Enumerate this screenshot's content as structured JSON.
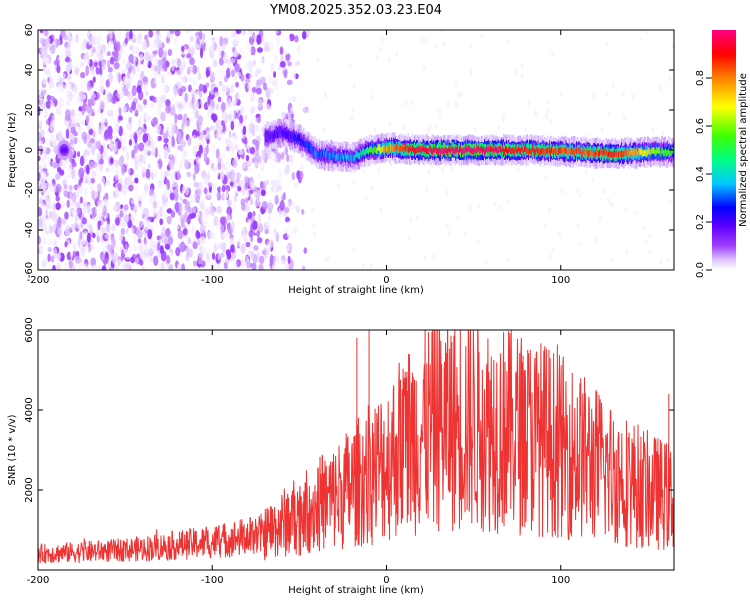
{
  "title": "YM08.2025.352.03.23.E04",
  "chart_data": [
    {
      "id": "spectrogram",
      "type": "heatmap",
      "xlabel": "Height of straight line (km)",
      "ylabel": "Frequency (Hz)",
      "xlim": [
        -200,
        165
      ],
      "ylim": [
        -60,
        60
      ],
      "xticks": [
        -200,
        -100,
        0,
        100
      ],
      "xtick_labels": [
        "-200",
        "-100",
        "0",
        "100"
      ],
      "yticks": [
        -60,
        -40,
        -20,
        0,
        20,
        40,
        60
      ],
      "ytick_labels": [
        "-60",
        "-40",
        "-20",
        "0",
        "20",
        "40",
        "60"
      ],
      "colorbar": {
        "label": "Normalized spectral amplitude",
        "ticks": [
          0.0,
          0.2,
          0.4,
          0.6,
          0.8
        ],
        "tick_labels": [
          "0.0",
          "0.2",
          "0.4",
          "0.6",
          "0.8"
        ],
        "range": [
          0,
          1
        ],
        "colormap": [
          "#ffffff",
          "#e0c8ff",
          "#a040ff",
          "#6000ff",
          "#0000ff",
          "#00c8ff",
          "#00ff80",
          "#40ff00",
          "#ffff00",
          "#ff8000",
          "#ff0000",
          "#ff0080"
        ]
      },
      "noise_region": {
        "x_range": [
          -200,
          -45
        ],
        "y_range": [
          -60,
          60
        ],
        "amplitude_range": [
          0.0,
          0.2
        ]
      },
      "ridge": [
        {
          "x": -185,
          "y": 0,
          "amp": 0.22
        },
        {
          "x": -70,
          "y": 6,
          "amp": 0.25
        },
        {
          "x": -60,
          "y": 9,
          "amp": 0.3
        },
        {
          "x": -50,
          "y": 5,
          "amp": 0.35
        },
        {
          "x": -40,
          "y": -2,
          "amp": 0.4
        },
        {
          "x": -20,
          "y": -4,
          "amp": 0.45
        },
        {
          "x": -10,
          "y": 0,
          "amp": 0.6
        },
        {
          "x": 0,
          "y": 1,
          "amp": 0.8
        },
        {
          "x": 20,
          "y": 0,
          "amp": 0.95
        },
        {
          "x": 50,
          "y": 0,
          "amp": 1.0
        },
        {
          "x": 80,
          "y": 0,
          "amp": 0.9
        },
        {
          "x": 110,
          "y": -1,
          "amp": 0.85
        },
        {
          "x": 130,
          "y": -2,
          "amp": 0.9
        },
        {
          "x": 150,
          "y": -1,
          "amp": 0.7
        },
        {
          "x": 165,
          "y": -1,
          "amp": 0.6
        }
      ]
    },
    {
      "id": "snr",
      "type": "line",
      "xlabel": "Height of straight line (km)",
      "ylabel": "SNR (10 * v/v)",
      "xlim": [
        -200,
        165
      ],
      "ylim": [
        0,
        6000
      ],
      "xticks": [
        -200,
        -100,
        0,
        100
      ],
      "xtick_labels": [
        "-200",
        "-100",
        "0",
        "100"
      ],
      "yticks": [
        2000,
        4000,
        6000
      ],
      "ytick_labels": [
        "2000",
        "4000",
        "6000"
      ],
      "color": "#ee3333",
      "envelope": {
        "x": [
          -200,
          -150,
          -100,
          -70,
          -50,
          -30,
          -20,
          -10,
          0,
          10,
          30,
          50,
          70,
          90,
          110,
          130,
          150,
          165
        ],
        "y": [
          400,
          500,
          700,
          900,
          1400,
          1800,
          2100,
          2400,
          2700,
          3200,
          3700,
          3700,
          3500,
          3300,
          2900,
          2400,
          2000,
          1800
        ]
      },
      "spikes": [
        {
          "x": -17,
          "y": 5800
        },
        {
          "x": -10,
          "y": 6000
        },
        {
          "x": 68,
          "y": 5200
        },
        {
          "x": 78,
          "y": 5200
        },
        {
          "x": 162,
          "y": 4400
        }
      ]
    }
  ]
}
